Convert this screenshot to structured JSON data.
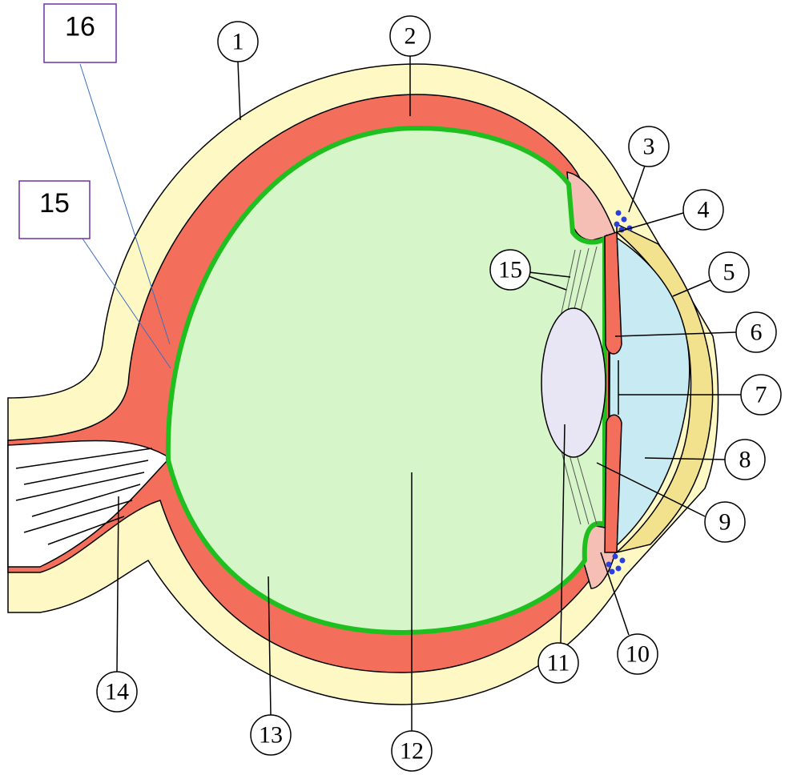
{
  "callouts": [
    "1",
    "2",
    "3",
    "4",
    "5",
    "6",
    "7",
    "8",
    "9",
    "10",
    "11",
    "12",
    "13",
    "14",
    "15"
  ],
  "boxes": [
    "16",
    "15"
  ]
}
